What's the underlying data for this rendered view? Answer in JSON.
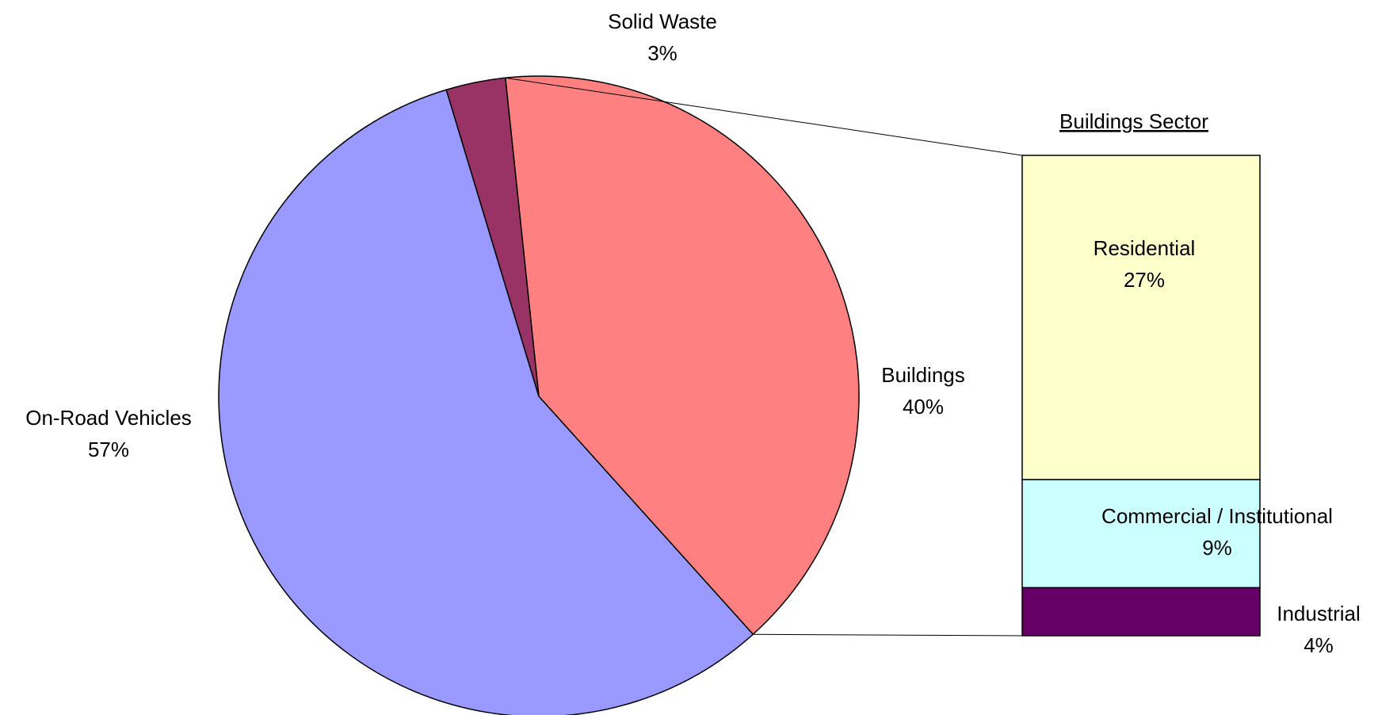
{
  "chart_data": {
    "type": "pie",
    "pie": {
      "start_angle_deg": 354,
      "slices": [
        {
          "key": "buildings",
          "name": "Buildings",
          "label": "40%",
          "value": 40,
          "color": "#ff8080"
        },
        {
          "key": "on_road",
          "name": "On-Road Vehicles",
          "label": "57%",
          "value": 57,
          "color": "#9999ff"
        },
        {
          "key": "solid_waste",
          "name": "Solid Waste",
          "label": "3%",
          "value": 3,
          "color": "#993366"
        }
      ]
    },
    "breakdown": {
      "title": "Buildings Sector",
      "type": "stacked-bar",
      "parent": "Buildings",
      "segments": [
        {
          "key": "residential",
          "name": "Residential",
          "label": "27%",
          "value": 27,
          "color": "#ffffcc"
        },
        {
          "key": "commercial",
          "name": "Commercial / Institutional",
          "label": "9%",
          "value": 9,
          "color": "#ccffff"
        },
        {
          "key": "industrial",
          "name": "Industrial",
          "label": "4%",
          "value": 4,
          "color": "#660066"
        }
      ]
    }
  }
}
